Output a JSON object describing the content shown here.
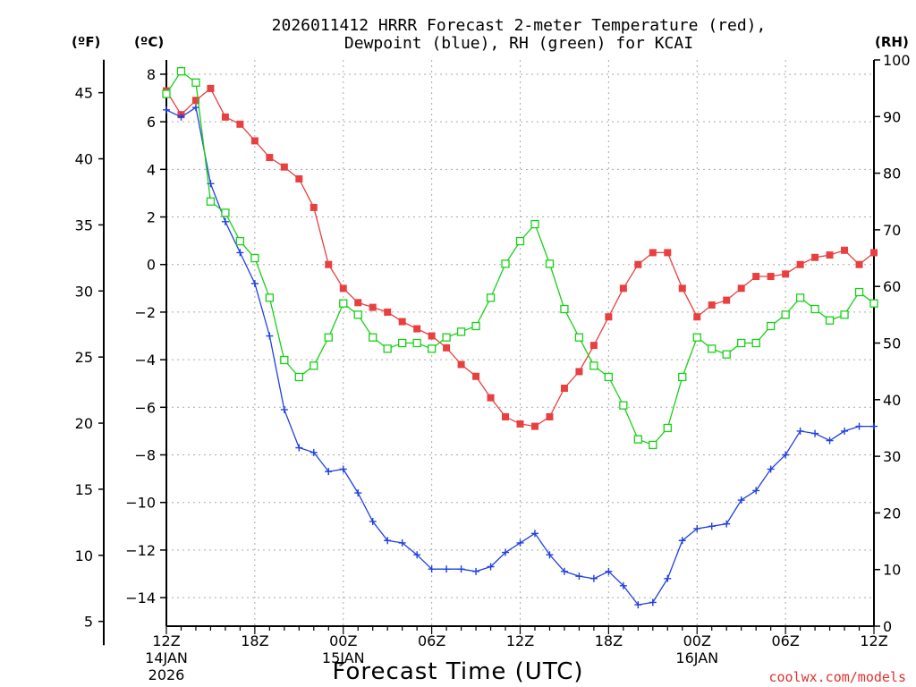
{
  "chart_data": {
    "type": "line",
    "title_line1": "2026011412 HRRR Forecast 2-meter Temperature (red),",
    "title_line2": "Dewpoint (blue), RH (green) for KCAI",
    "xlabel": "Forecast Time (UTC)",
    "credit": "coolwx.com/models",
    "unit_f": "(ºF)",
    "unit_c": "(ºC)",
    "unit_rh": "(RH)",
    "x_range_hours": [
      0,
      48
    ],
    "ylim_c": [
      -15.2,
      8.6
    ],
    "ylim_rh": [
      0,
      100
    ],
    "yticks_c": [
      "8",
      "6",
      "4",
      "2",
      "0",
      "−2",
      "−4",
      "−6",
      "−8",
      "−10",
      "−12",
      "−14"
    ],
    "yticks_c_values": [
      8,
      6,
      4,
      2,
      0,
      -2,
      -4,
      -6,
      -8,
      -10,
      -12,
      -14
    ],
    "yticks_f": [
      "45",
      "40",
      "35",
      "30",
      "25",
      "20",
      "15",
      "10",
      "5"
    ],
    "yticks_f_values": [
      45,
      40,
      35,
      30,
      25,
      20,
      15,
      10,
      5
    ],
    "yticks_rh": [
      "100",
      "90",
      "80",
      "70",
      "60",
      "50",
      "40",
      "30",
      "20",
      "10",
      "0"
    ],
    "yticks_rh_values": [
      100,
      90,
      80,
      70,
      60,
      50,
      40,
      30,
      20,
      10,
      0
    ],
    "xticks": [
      {
        "hour": 0,
        "label": "12Z",
        "sub1": "14JAN",
        "sub2": "2026"
      },
      {
        "hour": 6,
        "label": "18Z",
        "sub1": "",
        "sub2": ""
      },
      {
        "hour": 12,
        "label": "00Z",
        "sub1": "15JAN",
        "sub2": ""
      },
      {
        "hour": 18,
        "label": "06Z",
        "sub1": "",
        "sub2": ""
      },
      {
        "hour": 24,
        "label": "12Z",
        "sub1": "",
        "sub2": ""
      },
      {
        "hour": 30,
        "label": "18Z",
        "sub1": "",
        "sub2": ""
      },
      {
        "hour": 36,
        "label": "00Z",
        "sub1": "16JAN",
        "sub2": ""
      },
      {
        "hour": 42,
        "label": "06Z",
        "sub1": "",
        "sub2": ""
      },
      {
        "hour": 48,
        "label": "12Z",
        "sub1": "",
        "sub2": ""
      }
    ],
    "hours": [
      0,
      1,
      2,
      3,
      4,
      5,
      6,
      7,
      8,
      9,
      10,
      11,
      12,
      13,
      14,
      15,
      16,
      17,
      18,
      19,
      20,
      21,
      22,
      23,
      24,
      25,
      26,
      27,
      28,
      29,
      30,
      31,
      32,
      33,
      34,
      35,
      36,
      37,
      38,
      39,
      40,
      41,
      42,
      43,
      44,
      45,
      46,
      47,
      48
    ],
    "series": [
      {
        "name": "Temperature",
        "color": "#e84040",
        "marker": "filled-square",
        "axis": "C",
        "values": [
          7.3,
          6.3,
          6.9,
          7.4,
          6.2,
          5.9,
          5.2,
          4.5,
          4.1,
          3.6,
          2.4,
          0.0,
          -1.0,
          -1.6,
          -1.8,
          -2.0,
          -2.4,
          -2.7,
          -3.0,
          -3.5,
          -4.2,
          -4.7,
          -5.6,
          -6.4,
          -6.7,
          -6.8,
          -6.4,
          -5.2,
          -4.5,
          -3.4,
          -2.2,
          -1.0,
          0.0,
          0.5,
          0.5,
          -1.0,
          -2.2,
          -1.7,
          -1.5,
          -1.0,
          -0.5,
          -0.5,
          -0.4,
          0.0,
          0.3,
          0.4,
          0.6,
          0.0,
          0.5
        ]
      },
      {
        "name": "Dewpoint",
        "color": "#2040e0",
        "marker": "plus",
        "axis": "C",
        "values": [
          6.5,
          6.2,
          6.6,
          3.4,
          1.8,
          0.5,
          -0.8,
          -3.0,
          -6.1,
          -7.7,
          -7.9,
          -8.7,
          -8.6,
          -9.6,
          -10.8,
          -11.6,
          -11.7,
          -12.2,
          -12.8,
          -12.8,
          -12.8,
          -12.9,
          -12.7,
          -12.1,
          -11.7,
          -11.3,
          -12.2,
          -12.9,
          -13.1,
          -13.2,
          -12.9,
          -13.5,
          -14.3,
          -14.2,
          -13.2,
          -11.6,
          -11.1,
          -11.0,
          -10.9,
          -9.9,
          -9.5,
          -8.6,
          -8.0,
          -7.0,
          -7.1,
          -7.4,
          -7.0,
          -6.8,
          -6.8
        ]
      },
      {
        "name": "RH",
        "color": "#18d018",
        "marker": "open-square",
        "axis": "RH",
        "values": [
          94,
          98,
          96,
          75,
          73,
          68,
          65,
          58,
          47,
          44,
          46,
          51,
          57,
          55,
          51,
          49,
          50,
          50,
          49,
          51,
          52,
          53,
          58,
          64,
          68,
          71,
          64,
          56,
          51,
          46,
          44,
          39,
          33,
          32,
          35,
          44,
          51,
          49,
          48,
          50,
          50,
          53,
          55,
          58,
          56,
          54,
          55,
          59,
          57
        ]
      }
    ]
  }
}
